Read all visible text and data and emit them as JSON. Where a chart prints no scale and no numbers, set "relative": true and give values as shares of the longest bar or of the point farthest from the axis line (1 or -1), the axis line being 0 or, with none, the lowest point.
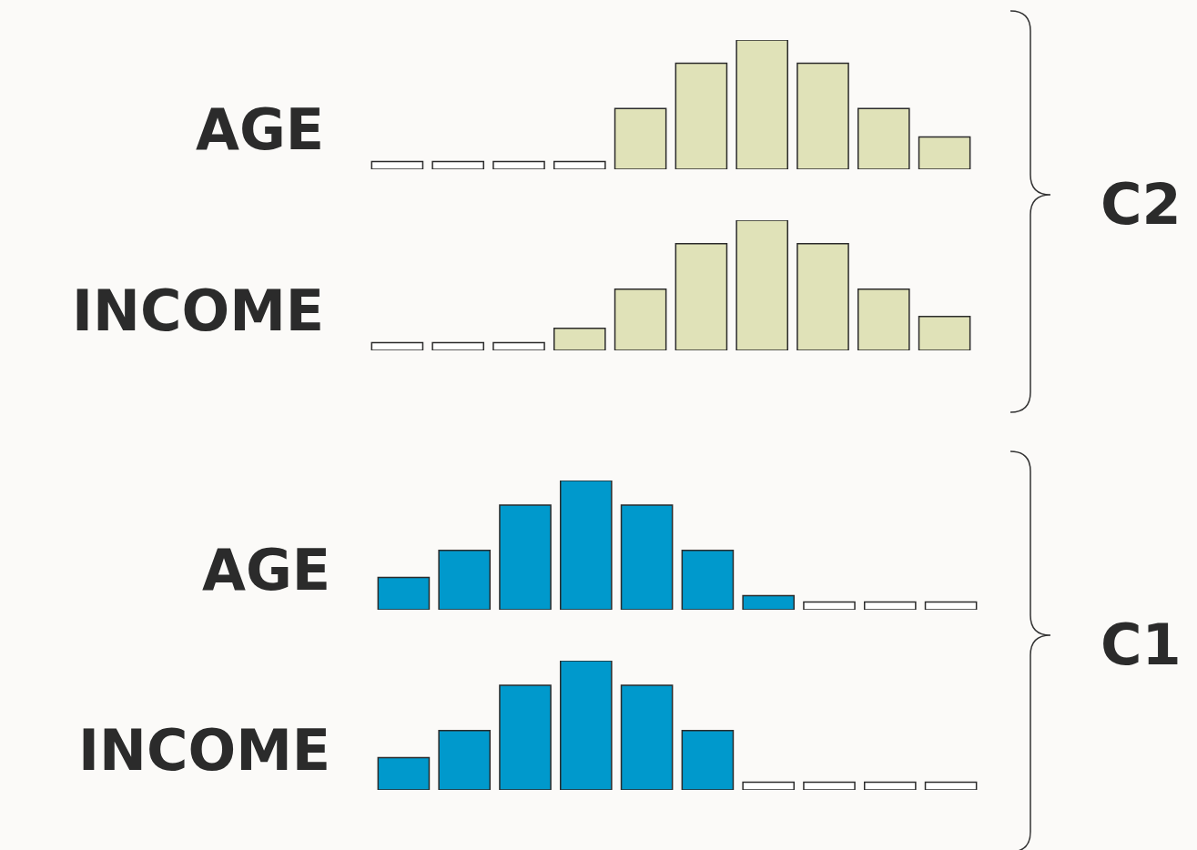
{
  "chart_data": [
    {
      "type": "bar",
      "relative": true,
      "ylabel": "AGE",
      "annotations": [
        "C2"
      ],
      "categories": [
        null,
        null,
        null,
        null,
        null,
        null,
        null,
        null,
        null,
        null
      ],
      "values": [
        0.06,
        0.06,
        0.06,
        0.06,
        0.47,
        0.82,
        1.0,
        0.82,
        0.47,
        0.25
      ],
      "colors": [
        "#ffffff",
        "#ffffff",
        "#ffffff",
        "#ffffff",
        "#e0e2b8",
        "#e0e2b8",
        "#e0e2b8",
        "#e0e2b8",
        "#e0e2b8",
        "#e0e2b8"
      ]
    },
    {
      "type": "bar",
      "relative": true,
      "ylabel": "INCOME",
      "categories": [
        null,
        null,
        null,
        null,
        null,
        null,
        null,
        null,
        null,
        null
      ],
      "values": [
        0.06,
        0.06,
        0.06,
        0.17,
        0.47,
        0.82,
        1.0,
        0.82,
        0.47,
        0.26
      ],
      "colors": [
        "#ffffff",
        "#ffffff",
        "#ffffff",
        "#e0e2b8",
        "#e0e2b8",
        "#e0e2b8",
        "#e0e2b8",
        "#e0e2b8",
        "#e0e2b8",
        "#e0e2b8"
      ]
    },
    {
      "type": "bar",
      "relative": true,
      "ylabel": "AGE",
      "annotations": [
        "C1"
      ],
      "categories": [
        null,
        null,
        null,
        null,
        null,
        null,
        null,
        null,
        null,
        null
      ],
      "values": [
        0.25,
        0.46,
        0.81,
        1.0,
        0.81,
        0.46,
        0.11,
        0.06,
        0.06,
        0.06
      ],
      "colors": [
        "#0099cc",
        "#0099cc",
        "#0099cc",
        "#0099cc",
        "#0099cc",
        "#0099cc",
        "#0099cc",
        "#ffffff",
        "#ffffff",
        "#ffffff"
      ]
    },
    {
      "type": "bar",
      "relative": true,
      "ylabel": "INCOME",
      "categories": [
        null,
        null,
        null,
        null,
        null,
        null,
        null,
        null,
        null,
        null
      ],
      "values": [
        0.25,
        0.46,
        0.81,
        1.0,
        0.81,
        0.46,
        0.06,
        0.06,
        0.06,
        0.06
      ],
      "colors": [
        "#0099cc",
        "#0099cc",
        "#0099cc",
        "#0099cc",
        "#0099cc",
        "#0099cc",
        "#ffffff",
        "#ffffff",
        "#ffffff",
        "#ffffff"
      ]
    }
  ]
}
